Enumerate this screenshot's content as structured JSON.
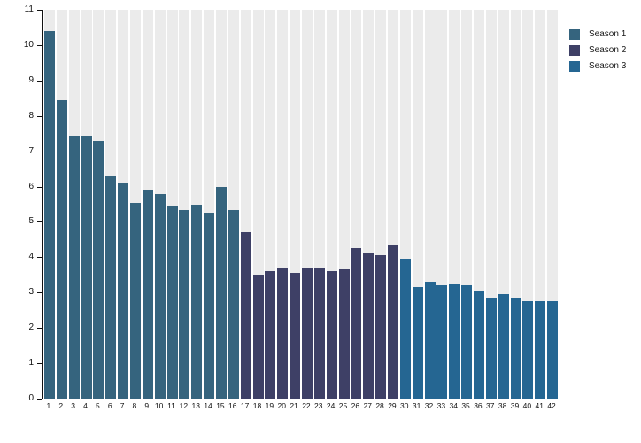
{
  "colors": {
    "season1": "#35647E",
    "season2": "#3E4066",
    "season3": "#256692",
    "band": "#EBEBEB",
    "axis": "#111111",
    "text": "#111111",
    "background": "#FFFFFF"
  },
  "legend": {
    "position": "top-right",
    "items": [
      {
        "label": "Season 1",
        "color": "#35647E"
      },
      {
        "label": "Season 2",
        "color": "#3E4066"
      },
      {
        "label": "Season 3",
        "color": "#256692"
      }
    ]
  },
  "chart_data": {
    "type": "bar",
    "title": "",
    "xlabel": "",
    "ylabel": "",
    "ylim": [
      0,
      11
    ],
    "yticks": [
      0,
      1,
      2,
      3,
      4,
      5,
      6,
      7,
      8,
      9,
      10,
      11
    ],
    "grid": "vertical gray category bands, no horizontal gridlines",
    "legend_position": "top-right",
    "categories": [
      "1",
      "2",
      "3",
      "4",
      "5",
      "6",
      "7",
      "8",
      "9",
      "10",
      "11",
      "12",
      "13",
      "14",
      "15",
      "16",
      "17",
      "18",
      "19",
      "20",
      "21",
      "22",
      "23",
      "24",
      "25",
      "26",
      "27",
      "28",
      "29",
      "30",
      "31",
      "32",
      "33",
      "34",
      "35",
      "36",
      "37",
      "38",
      "39",
      "40",
      "41",
      "42"
    ],
    "series": [
      {
        "name": "Season 1",
        "color": "#35647E",
        "categories": [
          "1",
          "2",
          "3",
          "4",
          "5",
          "6",
          "7",
          "8",
          "9",
          "10",
          "11",
          "12",
          "13",
          "14",
          "15",
          "16"
        ],
        "values": [
          10.4,
          8.45,
          7.45,
          7.45,
          7.3,
          6.3,
          6.1,
          5.55,
          5.9,
          5.8,
          5.45,
          5.35,
          5.5,
          5.25,
          6.0,
          5.35
        ]
      },
      {
        "name": "Season 2",
        "color": "#3E4066",
        "categories": [
          "17",
          "18",
          "19",
          "20",
          "21",
          "22",
          "23",
          "24",
          "25",
          "26",
          "27",
          "28",
          "29"
        ],
        "values": [
          4.7,
          3.5,
          3.6,
          3.7,
          3.55,
          3.7,
          3.7,
          3.6,
          3.65,
          4.25,
          4.1,
          4.05,
          4.35
        ]
      },
      {
        "name": "Season 3",
        "color": "#256692",
        "categories": [
          "30",
          "31",
          "32",
          "33",
          "34",
          "35",
          "36",
          "37",
          "38",
          "39",
          "40",
          "41",
          "42"
        ],
        "values": [
          3.95,
          3.15,
          3.3,
          3.2,
          3.25,
          3.2,
          3.05,
          2.85,
          2.95,
          2.85,
          2.75,
          2.75,
          2.75
        ]
      }
    ]
  }
}
